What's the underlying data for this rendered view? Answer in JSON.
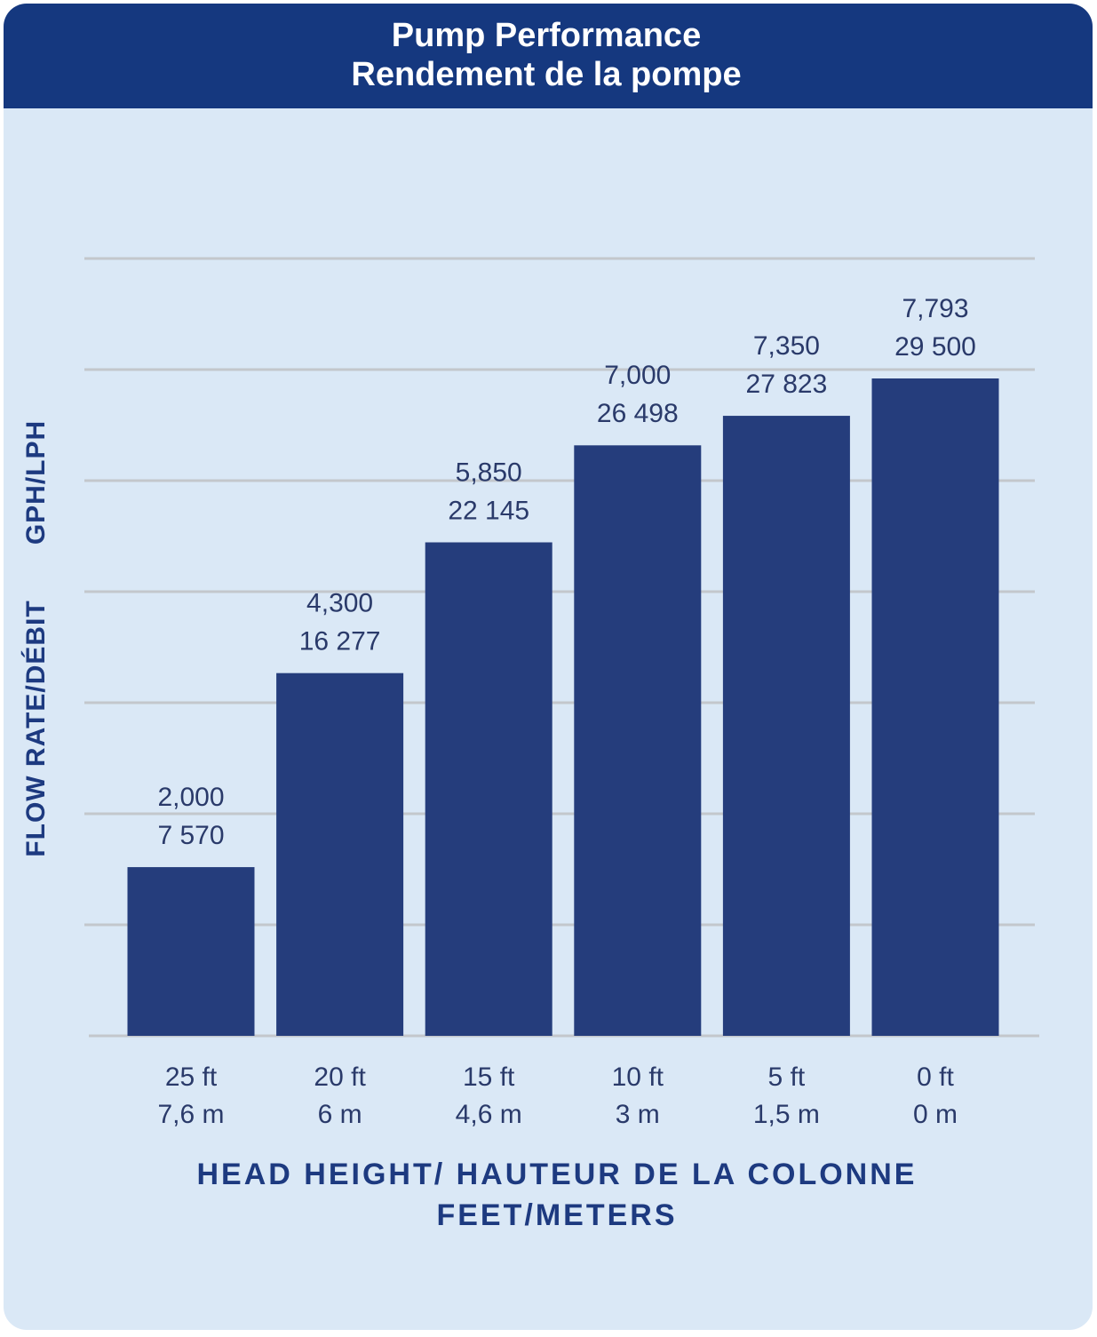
{
  "chart_data": {
    "type": "bar",
    "title": [
      "Pump Performance",
      "Rendement de la pompe"
    ],
    "y_label": [
      "FLOW RATE/DÉBIT",
      "GPH/LPH"
    ],
    "x_label": [
      "HEAD HEIGHT/ HAUTEUR DE LA COLONNE",
      "FEET/METERS"
    ],
    "categories": [
      [
        "25 ft",
        "7,6 m"
      ],
      [
        "20 ft",
        "6 m"
      ],
      [
        "15 ft",
        "4,6 m"
      ],
      [
        "10 ft",
        "3 m"
      ],
      [
        "5 ft",
        "1,5 m"
      ],
      [
        "0 ft",
        "0 m"
      ]
    ],
    "series": [
      {
        "color": "#253d7c",
        "values": [
          2000,
          4300,
          5850,
          7000,
          7350,
          7793
        ],
        "value_labels": [
          "2,000",
          "4,300",
          "5,850",
          "7,000",
          "7,350",
          "7,793"
        ]
      },
      {
        "values": [
          7570,
          16277,
          22145,
          26498,
          27823,
          29500
        ],
        "value_labels": [
          "7 570",
          "16 277",
          "22 145",
          "26 498",
          "27 823",
          "29 500"
        ]
      }
    ],
    "grid": true
  }
}
